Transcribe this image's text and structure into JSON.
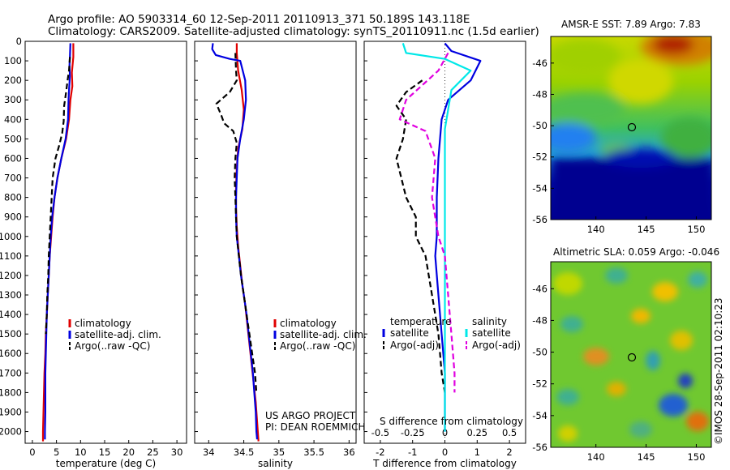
{
  "header": {
    "line1": "Argo profile: AO 5903314_60 12-Sep-2011 20110913_371 50.189S 143.118E",
    "line2": "Climatology: CARS2009. Satellite-adjusted climatology: synTS_20110911.nc (1.5d earlier)"
  },
  "colors": {
    "climatology": "#e00000",
    "satellite": "#0000e0",
    "argo": "#000000",
    "satellite_diff": "#00e8e8",
    "argo_adj_diff": "#e000e0"
  },
  "chart_data": [
    {
      "type": "line",
      "name": "temperature-panel",
      "xlabel": "temperature (deg C)",
      "ylabel": "",
      "xlim": [
        -1.5,
        32
      ],
      "ylim": [
        2060,
        0
      ],
      "xticks": [
        0,
        5,
        10,
        15,
        20,
        25,
        30
      ],
      "yticks": [
        0,
        100,
        200,
        300,
        400,
        500,
        600,
        700,
        800,
        900,
        1000,
        1100,
        1200,
        1300,
        1400,
        1500,
        1600,
        1700,
        1800,
        1900,
        2000
      ],
      "legend": {
        "location": "lower-middle",
        "entries": [
          "climatology",
          "satellite-adj. clim.",
          "Argo(..raw -QC)"
        ]
      },
      "series": [
        {
          "name": "climatology",
          "style": "solid",
          "points": [
            [
              8.5,
              10
            ],
            [
              8.5,
              80
            ],
            [
              8.2,
              160
            ],
            [
              8.3,
              230
            ],
            [
              7.9,
              300
            ],
            [
              7.6,
              400
            ],
            [
              7.0,
              500
            ],
            [
              6.0,
              600
            ],
            [
              5.2,
              700
            ],
            [
              4.6,
              800
            ],
            [
              4.2,
              900
            ],
            [
              3.9,
              1000
            ],
            [
              3.6,
              1100
            ],
            [
              3.4,
              1200
            ],
            [
              3.2,
              1300
            ],
            [
              3.0,
              1400
            ],
            [
              2.8,
              1500
            ],
            [
              2.7,
              1600
            ],
            [
              2.5,
              1700
            ],
            [
              2.4,
              1800
            ],
            [
              2.3,
              1900
            ],
            [
              2.2,
              2000
            ],
            [
              2.2,
              2050
            ]
          ]
        },
        {
          "name": "satellite-adj. clim.",
          "style": "solid",
          "points": [
            [
              7.9,
              10
            ],
            [
              7.8,
              80
            ],
            [
              7.7,
              120
            ],
            [
              7.8,
              180
            ],
            [
              7.6,
              250
            ],
            [
              7.5,
              300
            ],
            [
              7.4,
              400
            ],
            [
              6.9,
              500
            ],
            [
              6.0,
              600
            ],
            [
              5.2,
              700
            ],
            [
              4.6,
              800
            ],
            [
              4.1,
              900
            ],
            [
              3.8,
              1000
            ],
            [
              3.6,
              1100
            ],
            [
              3.4,
              1200
            ],
            [
              3.2,
              1300
            ],
            [
              3.0,
              1400
            ],
            [
              2.9,
              1500
            ],
            [
              2.8,
              1600
            ],
            [
              2.7,
              1700
            ],
            [
              2.7,
              1800
            ],
            [
              2.7,
              1900
            ],
            [
              2.6,
              2000
            ],
            [
              2.6,
              2040
            ]
          ]
        },
        {
          "name": "Argo(..raw -QC)",
          "style": "dashed",
          "points": [
            [
              7.8,
              80
            ],
            [
              7.6,
              150
            ],
            [
              7.3,
              200
            ],
            [
              7.0,
              260
            ],
            [
              6.6,
              330
            ],
            [
              6.5,
              410
            ],
            [
              6.2,
              470
            ],
            [
              5.6,
              530
            ],
            [
              4.8,
              600
            ],
            [
              4.2,
              700
            ],
            [
              4.0,
              800
            ],
            [
              3.8,
              900
            ],
            [
              3.6,
              1000
            ],
            [
              3.4,
              1100
            ],
            [
              3.3,
              1200
            ],
            [
              3.1,
              1300
            ],
            [
              3.0,
              1400
            ],
            [
              2.8,
              1500
            ]
          ]
        }
      ]
    },
    {
      "type": "line",
      "name": "salinity-panel",
      "xlabel": "salinity",
      "ylabel": "",
      "xlim": [
        33.8,
        36.1
      ],
      "ylim": [
        2060,
        0
      ],
      "xticks": [
        34,
        34.5,
        35,
        35.5,
        36
      ],
      "legend": {
        "location": "lower-middle",
        "entries": [
          "climatology",
          "satellite-adj. clim.",
          "Argo(..raw -QC)"
        ]
      },
      "annotation": [
        "US ARGO PROJECT",
        "PI: DEAN ROEMMICH"
      ],
      "series": [
        {
          "name": "climatology",
          "style": "solid",
          "points": [
            [
              34.4,
              10
            ],
            [
              34.4,
              60
            ],
            [
              34.42,
              150
            ],
            [
              34.47,
              250
            ],
            [
              34.5,
              350
            ],
            [
              34.48,
              450
            ],
            [
              34.42,
              550
            ],
            [
              34.4,
              650
            ],
            [
              34.39,
              750
            ],
            [
              34.39,
              850
            ],
            [
              34.4,
              950
            ],
            [
              34.42,
              1050
            ],
            [
              34.45,
              1150
            ],
            [
              34.48,
              1250
            ],
            [
              34.52,
              1350
            ],
            [
              34.55,
              1450
            ],
            [
              34.58,
              1550
            ],
            [
              34.61,
              1650
            ],
            [
              34.64,
              1750
            ],
            [
              34.67,
              1850
            ],
            [
              34.69,
              1950
            ],
            [
              34.71,
              2050
            ]
          ]
        },
        {
          "name": "satellite-adj. clim.",
          "style": "solid",
          "points": [
            [
              34.06,
              10
            ],
            [
              34.05,
              40
            ],
            [
              34.1,
              70
            ],
            [
              34.3,
              90
            ],
            [
              34.45,
              100
            ],
            [
              34.52,
              200
            ],
            [
              34.53,
              300
            ],
            [
              34.5,
              400
            ],
            [
              34.45,
              500
            ],
            [
              34.41,
              600
            ],
            [
              34.4,
              700
            ],
            [
              34.39,
              800
            ],
            [
              34.39,
              900
            ],
            [
              34.4,
              1000
            ],
            [
              34.43,
              1100
            ],
            [
              34.46,
              1200
            ],
            [
              34.5,
              1300
            ],
            [
              34.54,
              1400
            ],
            [
              34.57,
              1500
            ],
            [
              34.6,
              1600
            ],
            [
              34.63,
              1700
            ],
            [
              34.65,
              1800
            ],
            [
              34.67,
              1900
            ],
            [
              34.68,
              2000
            ],
            [
              34.69,
              2040
            ]
          ]
        },
        {
          "name": "Argo(..raw -QC)",
          "style": "dashed",
          "points": [
            [
              34.38,
              60
            ],
            [
              34.39,
              150
            ],
            [
              34.4,
              200
            ],
            [
              34.3,
              260
            ],
            [
              34.11,
              320
            ],
            [
              34.18,
              380
            ],
            [
              34.22,
              420
            ],
            [
              34.35,
              460
            ],
            [
              34.4,
              520
            ],
            [
              34.38,
              600
            ],
            [
              34.37,
              700
            ],
            [
              34.38,
              800
            ],
            [
              34.39,
              900
            ],
            [
              34.4,
              1000
            ],
            [
              34.43,
              1100
            ],
            [
              34.46,
              1200
            ],
            [
              34.5,
              1300
            ],
            [
              34.54,
              1400
            ],
            [
              34.58,
              1500
            ],
            [
              34.62,
              1600
            ],
            [
              34.66,
              1700
            ],
            [
              34.68,
              1800
            ]
          ]
        }
      ]
    },
    {
      "type": "line",
      "name": "difference-panel",
      "xlabel": "T difference from climatology",
      "ylabel": "",
      "secondary_xlabel": "S difference from climatology",
      "xlim": [
        -2.5,
        2.5
      ],
      "ylim": [
        2060,
        0
      ],
      "xticks": [
        -2,
        -1,
        0,
        1,
        2
      ],
      "secondary_xtick_labels": [
        "-0.5",
        "-0.25",
        "0",
        "0.25",
        "0.5"
      ],
      "legend": {
        "location": "lower-middle",
        "headings": [
          "temperature",
          "salinity"
        ],
        "entries": [
          "satellite",
          "Argo(-adj)",
          "satellite",
          "Argo(-adj)"
        ]
      },
      "series": [
        {
          "name": "temperature satellite",
          "style": "solid",
          "points": [
            [
              0.0,
              10
            ],
            [
              0.2,
              50
            ],
            [
              1.1,
              100
            ],
            [
              0.8,
              200
            ],
            [
              0.1,
              300
            ],
            [
              -0.1,
              400
            ],
            [
              -0.2,
              600
            ],
            [
              -0.25,
              800
            ],
            [
              -0.25,
              1000
            ],
            [
              -0.3,
              1100
            ],
            [
              -0.2,
              1300
            ],
            [
              -0.1,
              1500
            ],
            [
              0.0,
              1700
            ],
            [
              0.0,
              2000
            ]
          ]
        },
        {
          "name": "temperature Argo(-adj)",
          "style": "dashed",
          "points": [
            [
              -0.7,
              200
            ],
            [
              -1.2,
              260
            ],
            [
              -1.5,
              330
            ],
            [
              -1.2,
              400
            ],
            [
              -1.3,
              500
            ],
            [
              -1.5,
              600
            ],
            [
              -1.2,
              800
            ],
            [
              -0.9,
              900
            ],
            [
              -0.9,
              1000
            ],
            [
              -0.6,
              1100
            ],
            [
              -0.4,
              1300
            ],
            [
              -0.2,
              1500
            ],
            [
              -0.1,
              1700
            ],
            [
              0.0,
              1800
            ]
          ]
        },
        {
          "name": "salinity satellite",
          "style": "solid",
          "points": [
            [
              -1.3,
              10
            ],
            [
              -1.2,
              60
            ],
            [
              0.0,
              90
            ],
            [
              0.8,
              150
            ],
            [
              0.2,
              250
            ],
            [
              0.1,
              350
            ],
            [
              0.0,
              450
            ],
            [
              0.0,
              600
            ],
            [
              0.0,
              1000
            ],
            [
              0.0,
              1500
            ],
            [
              0.0,
              2000
            ]
          ]
        },
        {
          "name": "salinity Argo(-adj)",
          "style": "dashed",
          "points": [
            [
              0.1,
              60
            ],
            [
              -0.2,
              150
            ],
            [
              -1.2,
              300
            ],
            [
              -1.4,
              400
            ],
            [
              -0.6,
              460
            ],
            [
              -0.3,
              600
            ],
            [
              -0.4,
              800
            ],
            [
              -0.2,
              1000
            ],
            [
              0.0,
              1100
            ],
            [
              0.1,
              1300
            ],
            [
              0.2,
              1500
            ],
            [
              0.3,
              1700
            ],
            [
              0.3,
              1800
            ]
          ]
        }
      ]
    },
    {
      "type": "heatmap",
      "name": "sst-map",
      "title": "AMSR-E SST: 7.89 Argo: 7.83",
      "xlim": [
        135.5,
        151.5
      ],
      "ylim": [
        -56,
        -44.3
      ],
      "xticks": [
        140,
        145,
        150
      ],
      "yticks": [
        -46,
        -48,
        -50,
        -52,
        -54,
        -56
      ],
      "marker": {
        "lon": 143.118,
        "lat": -50.189
      }
    },
    {
      "type": "heatmap",
      "name": "sla-map",
      "title": "Altimetric SLA: 0.059 Argo: -0.046",
      "xlim": [
        135.5,
        151.5
      ],
      "ylim": [
        -56,
        -44.3
      ],
      "xticks": [
        140,
        145,
        150
      ],
      "yticks": [
        -46,
        -48,
        -50,
        -52,
        -54,
        -56
      ],
      "marker": {
        "lon": 143.118,
        "lat": -50.189
      }
    }
  ],
  "credit": "©IMOS 28-Sep-2011 02:10:23"
}
